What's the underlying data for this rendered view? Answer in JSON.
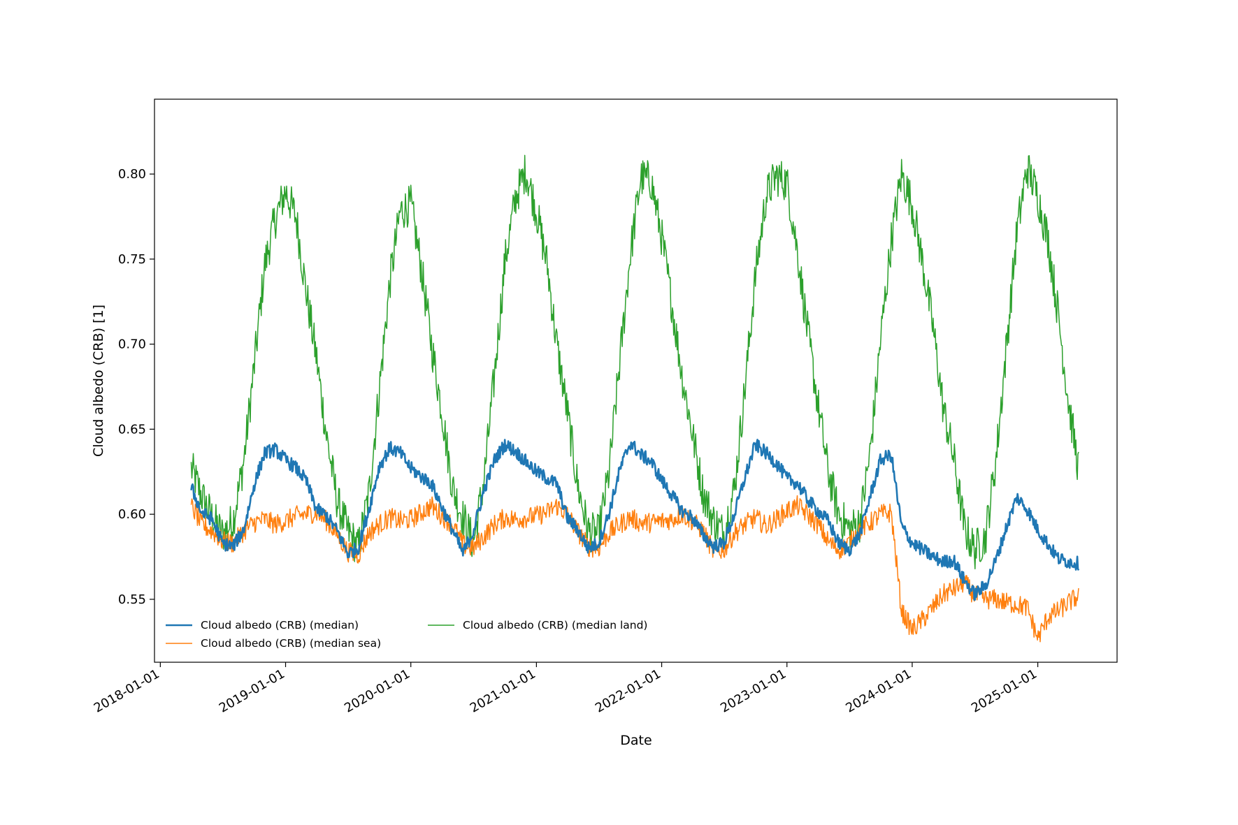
{
  "chart_data": {
    "type": "line",
    "title": "",
    "xlabel": "Date",
    "ylabel": "Cloud albedo (CRB) [1]",
    "x_ticks": [
      "2018-01-01",
      "2019-01-01",
      "2020-01-01",
      "2021-01-01",
      "2022-01-01",
      "2023-01-01",
      "2024-01-01",
      "2025-01-01"
    ],
    "y_ticks": [
      "0.55",
      "0.60",
      "0.65",
      "0.70",
      "0.75",
      "0.80"
    ],
    "xlim": [
      "2017-12-15",
      "2025-08-20"
    ],
    "ylim": [
      0.513,
      0.844
    ],
    "grid": false,
    "legend_position": "lower-left",
    "series": [
      {
        "name": "Cloud albedo (CRB) (median)",
        "color": "#1f77b4",
        "x": [
          "2018-04-01",
          "2018-05-01",
          "2018-06-01",
          "2018-07-01",
          "2018-08-01",
          "2018-09-01",
          "2018-10-01",
          "2018-11-01",
          "2018-12-01",
          "2019-01-01",
          "2019-02-01",
          "2019-03-01",
          "2019-04-01",
          "2019-05-01",
          "2019-06-01",
          "2019-07-01",
          "2019-08-01",
          "2019-09-01",
          "2019-10-01",
          "2019-11-01",
          "2019-12-01",
          "2020-01-01",
          "2020-02-01",
          "2020-03-01",
          "2020-04-01",
          "2020-05-01",
          "2020-06-01",
          "2020-07-01",
          "2020-08-01",
          "2020-09-01",
          "2020-10-01",
          "2020-11-01",
          "2020-12-01",
          "2021-01-01",
          "2021-02-01",
          "2021-03-01",
          "2021-04-01",
          "2021-05-01",
          "2021-06-01",
          "2021-07-01",
          "2021-08-01",
          "2021-09-01",
          "2021-10-01",
          "2021-11-01",
          "2021-12-01",
          "2022-01-01",
          "2022-02-01",
          "2022-03-01",
          "2022-04-01",
          "2022-05-01",
          "2022-06-01",
          "2022-07-01",
          "2022-08-01",
          "2022-09-01",
          "2022-10-01",
          "2022-11-01",
          "2022-12-01",
          "2023-01-01",
          "2023-02-01",
          "2023-03-01",
          "2023-04-01",
          "2023-05-01",
          "2023-06-01",
          "2023-07-01",
          "2023-08-01",
          "2023-09-01",
          "2023-10-01",
          "2023-11-01",
          "2023-12-01",
          "2024-01-01",
          "2024-02-01",
          "2024-03-01",
          "2024-04-01",
          "2024-05-01",
          "2024-06-01",
          "2024-07-01",
          "2024-08-01",
          "2024-09-01",
          "2024-10-01",
          "2024-11-01",
          "2024-12-01",
          "2025-01-01",
          "2025-02-01",
          "2025-03-01",
          "2025-04-01",
          "2025-05-01"
        ],
        "values": [
          0.616,
          0.601,
          0.597,
          0.583,
          0.581,
          0.591,
          0.617,
          0.636,
          0.638,
          0.632,
          0.627,
          0.62,
          0.603,
          0.599,
          0.59,
          0.577,
          0.58,
          0.603,
          0.628,
          0.639,
          0.636,
          0.627,
          0.622,
          0.618,
          0.604,
          0.591,
          0.577,
          0.59,
          0.614,
          0.632,
          0.641,
          0.637,
          0.631,
          0.625,
          0.621,
          0.618,
          0.598,
          0.591,
          0.58,
          0.583,
          0.601,
          0.626,
          0.642,
          0.635,
          0.631,
          0.62,
          0.611,
          0.602,
          0.598,
          0.588,
          0.581,
          0.583,
          0.6,
          0.622,
          0.641,
          0.636,
          0.63,
          0.621,
          0.618,
          0.609,
          0.602,
          0.596,
          0.583,
          0.579,
          0.588,
          0.611,
          0.632,
          0.635,
          0.593,
          0.583,
          0.579,
          0.575,
          0.572,
          0.573,
          0.561,
          0.553,
          0.558,
          0.573,
          0.592,
          0.61,
          0.603,
          0.591,
          0.582,
          0.574,
          0.572,
          0.571
        ]
      },
      {
        "name": "Cloud albedo (CRB) (median sea)",
        "color": "#ff7f0e",
        "x": [
          "2018-04-01",
          "2018-05-01",
          "2018-06-01",
          "2018-07-01",
          "2018-08-01",
          "2018-09-01",
          "2018-10-01",
          "2018-11-01",
          "2018-12-01",
          "2019-01-01",
          "2019-02-01",
          "2019-03-01",
          "2019-04-01",
          "2019-05-01",
          "2019-06-01",
          "2019-07-01",
          "2019-08-01",
          "2019-09-01",
          "2019-10-01",
          "2019-11-01",
          "2019-12-01",
          "2020-01-01",
          "2020-02-01",
          "2020-03-01",
          "2020-04-01",
          "2020-05-01",
          "2020-06-01",
          "2020-07-01",
          "2020-08-01",
          "2020-09-01",
          "2020-10-01",
          "2020-11-01",
          "2020-12-01",
          "2021-01-01",
          "2021-02-01",
          "2021-03-01",
          "2021-04-01",
          "2021-05-01",
          "2021-06-01",
          "2021-07-01",
          "2021-08-01",
          "2021-09-01",
          "2021-10-01",
          "2021-11-01",
          "2021-12-01",
          "2022-01-01",
          "2022-02-01",
          "2022-03-01",
          "2022-04-01",
          "2022-05-01",
          "2022-06-01",
          "2022-07-01",
          "2022-08-01",
          "2022-09-01",
          "2022-10-01",
          "2022-11-01",
          "2022-12-01",
          "2023-01-01",
          "2023-02-01",
          "2023-03-01",
          "2023-04-01",
          "2023-05-01",
          "2023-06-01",
          "2023-07-01",
          "2023-08-01",
          "2023-09-01",
          "2023-10-01",
          "2023-11-01",
          "2023-12-01",
          "2024-01-01",
          "2024-02-01",
          "2024-03-01",
          "2024-04-01",
          "2024-05-01",
          "2024-06-01",
          "2024-07-01",
          "2024-08-01",
          "2024-09-01",
          "2024-10-01",
          "2024-11-01",
          "2024-12-01",
          "2025-01-01",
          "2025-02-01",
          "2025-03-01",
          "2025-04-01",
          "2025-05-01"
        ],
        "values": [
          0.605,
          0.594,
          0.59,
          0.584,
          0.583,
          0.59,
          0.595,
          0.597,
          0.594,
          0.596,
          0.599,
          0.6,
          0.601,
          0.596,
          0.588,
          0.578,
          0.576,
          0.589,
          0.594,
          0.598,
          0.596,
          0.597,
          0.601,
          0.605,
          0.599,
          0.594,
          0.582,
          0.58,
          0.587,
          0.594,
          0.598,
          0.597,
          0.598,
          0.599,
          0.601,
          0.605,
          0.6,
          0.59,
          0.581,
          0.58,
          0.589,
          0.594,
          0.598,
          0.595,
          0.595,
          0.596,
          0.597,
          0.6,
          0.596,
          0.59,
          0.578,
          0.579,
          0.589,
          0.594,
          0.598,
          0.593,
          0.597,
          0.602,
          0.605,
          0.6,
          0.594,
          0.584,
          0.579,
          0.583,
          0.591,
          0.595,
          0.6,
          0.601,
          0.543,
          0.532,
          0.538,
          0.545,
          0.553,
          0.556,
          0.56,
          0.552,
          0.55,
          0.55,
          0.548,
          0.547,
          0.545,
          0.527,
          0.54,
          0.543,
          0.548,
          0.552
        ]
      },
      {
        "name": "Cloud albedo (CRB) (median land)",
        "color": "#2ca02c",
        "x": [
          "2018-04-01",
          "2018-05-01",
          "2018-06-01",
          "2018-07-01",
          "2018-08-01",
          "2018-09-01",
          "2018-10-01",
          "2018-11-01",
          "2018-12-01",
          "2019-01-01",
          "2019-02-01",
          "2019-03-01",
          "2019-04-01",
          "2019-05-01",
          "2019-06-01",
          "2019-07-01",
          "2019-08-01",
          "2019-09-01",
          "2019-10-01",
          "2019-11-01",
          "2019-12-01",
          "2020-01-01",
          "2020-02-01",
          "2020-03-01",
          "2020-04-01",
          "2020-05-01",
          "2020-06-01",
          "2020-07-01",
          "2020-08-01",
          "2020-09-01",
          "2020-10-01",
          "2020-11-01",
          "2020-12-01",
          "2021-01-01",
          "2021-02-01",
          "2021-03-01",
          "2021-04-01",
          "2021-05-01",
          "2021-06-01",
          "2021-07-01",
          "2021-08-01",
          "2021-09-01",
          "2021-10-01",
          "2021-11-01",
          "2021-12-01",
          "2022-01-01",
          "2022-02-01",
          "2022-03-01",
          "2022-04-01",
          "2022-05-01",
          "2022-06-01",
          "2022-07-01",
          "2022-08-01",
          "2022-09-01",
          "2022-10-01",
          "2022-11-01",
          "2022-12-01",
          "2023-01-01",
          "2023-02-01",
          "2023-03-01",
          "2023-04-01",
          "2023-05-01",
          "2023-06-01",
          "2023-07-01",
          "2023-08-01",
          "2023-09-01",
          "2023-10-01",
          "2023-11-01",
          "2023-12-01",
          "2024-01-01",
          "2024-02-01",
          "2024-03-01",
          "2024-04-01",
          "2024-05-01",
          "2024-06-01",
          "2024-07-01",
          "2024-08-01",
          "2024-09-01",
          "2024-10-01",
          "2024-11-01",
          "2024-12-01",
          "2025-01-01",
          "2025-02-01",
          "2025-03-01",
          "2025-04-01",
          "2025-05-01"
        ],
        "values": [
          0.627,
          0.611,
          0.598,
          0.588,
          0.596,
          0.631,
          0.686,
          0.746,
          0.773,
          0.79,
          0.774,
          0.732,
          0.692,
          0.645,
          0.607,
          0.59,
          0.58,
          0.612,
          0.673,
          0.737,
          0.778,
          0.782,
          0.744,
          0.7,
          0.66,
          0.616,
          0.598,
          0.583,
          0.62,
          0.682,
          0.748,
          0.786,
          0.802,
          0.778,
          0.747,
          0.7,
          0.66,
          0.617,
          0.59,
          0.588,
          0.625,
          0.69,
          0.752,
          0.798,
          0.796,
          0.763,
          0.722,
          0.682,
          0.647,
          0.613,
          0.596,
          0.589,
          0.615,
          0.675,
          0.74,
          0.787,
          0.799,
          0.795,
          0.754,
          0.709,
          0.665,
          0.625,
          0.6,
          0.591,
          0.595,
          0.637,
          0.703,
          0.761,
          0.8,
          0.782,
          0.747,
          0.711,
          0.662,
          0.633,
          0.592,
          0.579,
          0.586,
          0.632,
          0.697,
          0.766,
          0.804,
          0.787,
          0.76,
          0.718,
          0.665,
          0.625
        ]
      }
    ]
  }
}
